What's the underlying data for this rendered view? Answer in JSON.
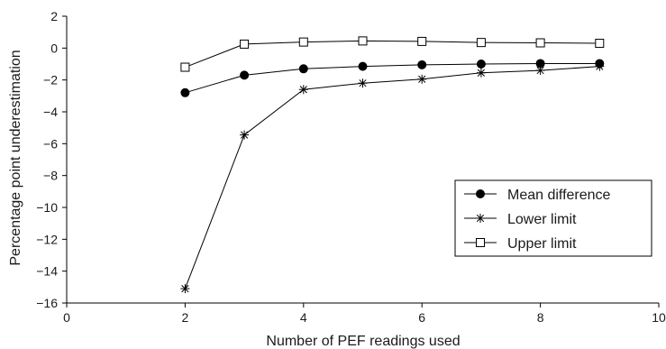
{
  "chart_data": {
    "type": "line",
    "xlabel": "Number of PEF readings used",
    "ylabel": "Percentage point underestimation",
    "xlim": [
      0,
      10
    ],
    "ylim": [
      -16,
      2
    ],
    "xticks": [
      0,
      2,
      4,
      6,
      8,
      10
    ],
    "yticks": [
      -16,
      -14,
      -12,
      -10,
      -8,
      -6,
      -4,
      -2,
      0,
      2
    ],
    "grid": false,
    "legend_position": "lower-right",
    "x": [
      2,
      3,
      4,
      5,
      6,
      7,
      8,
      9
    ],
    "series": [
      {
        "name": "Mean difference",
        "marker": "filled-circle",
        "color": "#000000",
        "values": [
          -2.8,
          -1.7,
          -1.3,
          -1.15,
          -1.05,
          -1.0,
          -0.97,
          -0.97
        ]
      },
      {
        "name": "Lower limit",
        "marker": "asterisk",
        "color": "#000000",
        "values": [
          -15.1,
          -5.45,
          -2.6,
          -2.2,
          -1.95,
          -1.55,
          -1.4,
          -1.15
        ]
      },
      {
        "name": "Upper limit",
        "marker": "open-square",
        "color": "#000000",
        "values": [
          -1.2,
          0.25,
          0.38,
          0.45,
          0.42,
          0.35,
          0.33,
          0.3
        ]
      }
    ]
  }
}
